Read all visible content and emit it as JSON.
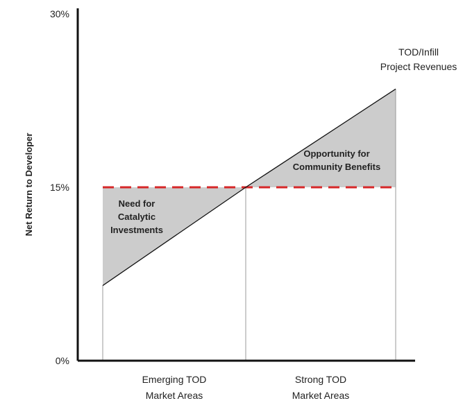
{
  "chart_data": {
    "type": "line",
    "xlabel": "",
    "ylabel": "Net Return to Developer",
    "ylim": [
      0,
      30
    ],
    "y_ticks": [
      "0%",
      "15%",
      "30%"
    ],
    "y_tick_values": [
      0,
      15,
      30
    ],
    "categories": [
      "Emerging TOD\nMarket Areas",
      "Strong TOD\nMarket Areas"
    ],
    "series": [
      {
        "name": "TOD/Infill\nProject Revenues",
        "x": [
          0,
          1,
          2
        ],
        "values": [
          6.5,
          15,
          23.5
        ]
      }
    ],
    "threshold": {
      "value": 15,
      "style": "dashed",
      "color": "#d62728"
    },
    "annotations": [
      {
        "text": "Need for\nCatalytic\nInvestments"
      },
      {
        "text": "Opportunity for\nCommunity Benefits"
      }
    ],
    "colors": {
      "fill": "#cccccc",
      "line": "#111111",
      "threshold": "#d62728",
      "axis": "#111111",
      "divider": "#9a9a9a"
    },
    "grid": false
  }
}
